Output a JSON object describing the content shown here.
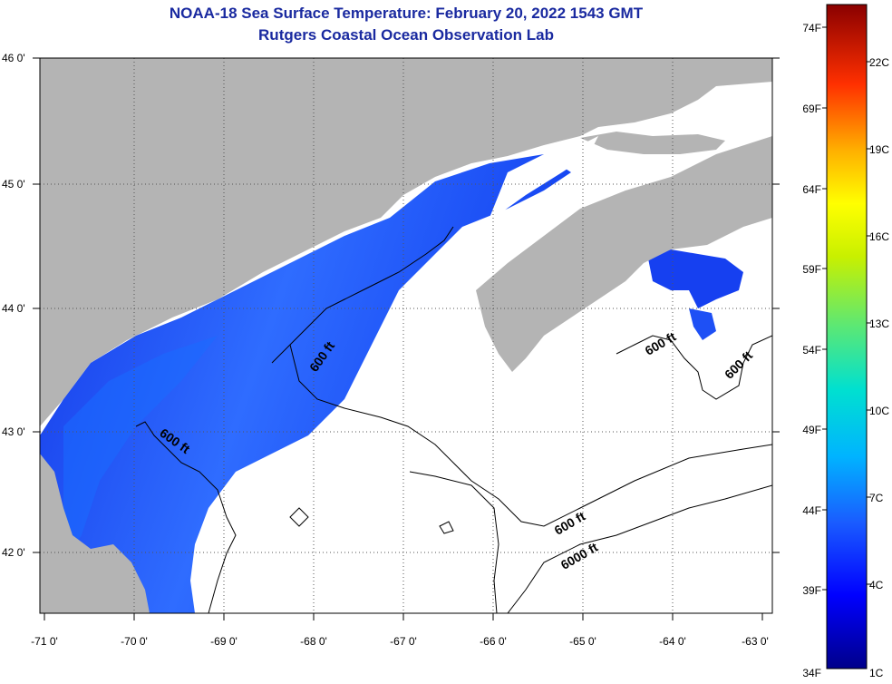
{
  "header": {
    "title": "NOAA-18 Sea Surface Temperature:  February 20, 2022 1543 GMT",
    "subtitle": "Rutgers Coastal Ocean Observation Lab"
  },
  "map": {
    "lon_labels": [
      "-71 0'",
      "-70 0'",
      "-69 0'",
      "-68 0'",
      "-67 0'",
      "-66 0'",
      "-65 0'",
      "-64 0'",
      "-63 0'"
    ],
    "lat_labels": [
      "46 0'",
      "45 0'",
      "44 0'",
      "43 0'",
      "42 0'"
    ],
    "contour_labels": [
      "600 ft",
      "600 ft",
      "600 ft",
      "600 ft",
      "600 ft",
      "6000 ft"
    ],
    "colors": {
      "land": "#b4b4b4",
      "no_data": "#ffffff",
      "gridline": "#555555"
    }
  },
  "colorbar": {
    "f_labels": [
      "74F",
      "69F",
      "64F",
      "59F",
      "54F",
      "49F",
      "44F",
      "39F",
      "34F"
    ],
    "c_labels": [
      "22C",
      "19C",
      "16C",
      "13C",
      "10C",
      "7C",
      "4C",
      "1C"
    ]
  }
}
